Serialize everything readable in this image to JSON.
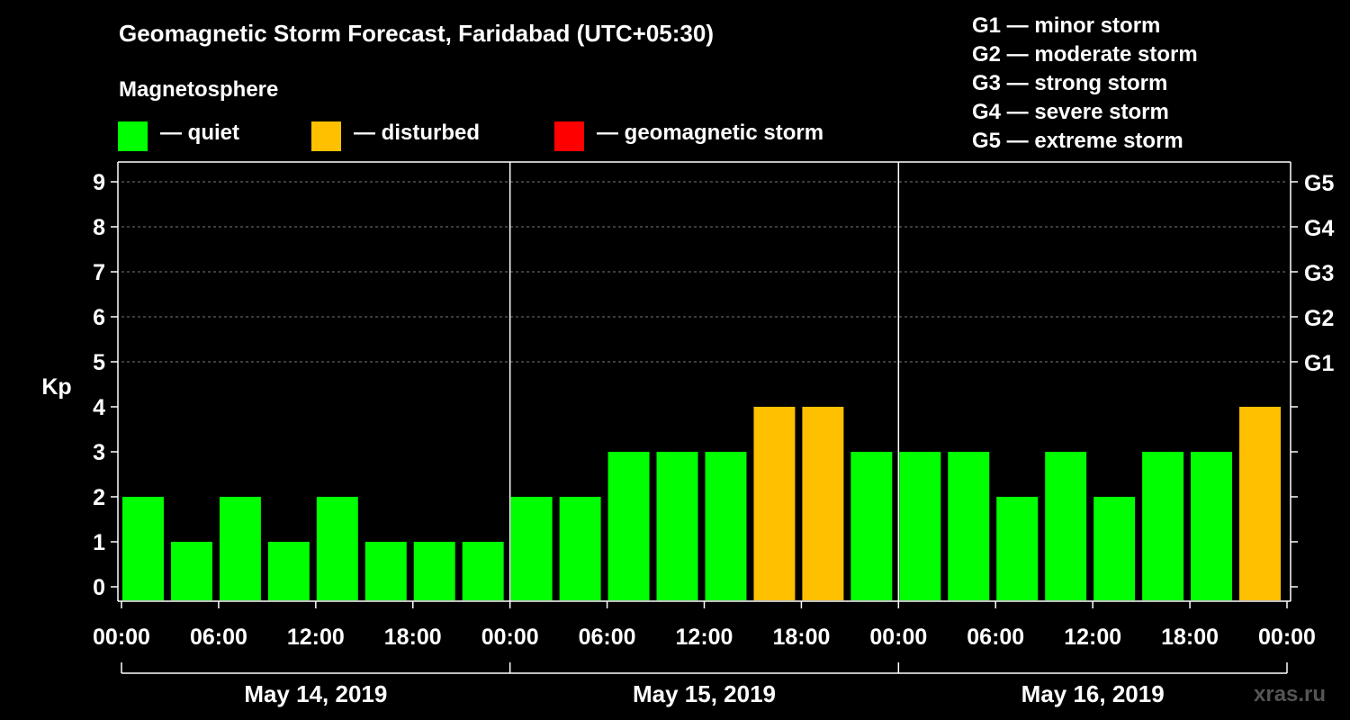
{
  "title": "Geomagnetic Storm Forecast, Faridabad (UTC+05:30)",
  "magnetosphere_label": "Magnetosphere",
  "legend": [
    {
      "label": "— quiet",
      "color": "#00ff00"
    },
    {
      "label": "— disturbed",
      "color": "#ffc000"
    },
    {
      "label": "— geomagnetic storm",
      "color": "#ff0000"
    }
  ],
  "storm_levels": [
    "G1 — minor storm",
    "G2 — moderate storm",
    "G3 — strong storm",
    "G4 — severe storm",
    "G5 — extreme storm"
  ],
  "watermark": "xras.ru",
  "chart_data": {
    "type": "bar",
    "title": "Geomagnetic Storm Forecast, Faridabad (UTC+05:30)",
    "ylabel": "Kp",
    "ylim": [
      0,
      9
    ],
    "yticks": [
      "0",
      "1",
      "2",
      "3",
      "4",
      "5",
      "6",
      "7",
      "8",
      "9"
    ],
    "right_ticks": [
      {
        "kp": 5,
        "label": "G1"
      },
      {
        "kp": 6,
        "label": "G2"
      },
      {
        "kp": 7,
        "label": "G3"
      },
      {
        "kp": 8,
        "label": "G4"
      },
      {
        "kp": 9,
        "label": "G5"
      }
    ],
    "xticks": [
      "00:00",
      "06:00",
      "12:00",
      "18:00",
      "00:00",
      "06:00",
      "12:00",
      "18:00",
      "00:00",
      "06:00",
      "12:00",
      "18:00",
      "00:00"
    ],
    "days": [
      "May 14, 2019",
      "May 15, 2019",
      "May 16, 2019"
    ],
    "interval_hours": 3,
    "start_offset_hours": 0,
    "values": [
      2,
      1,
      2,
      1,
      2,
      1,
      1,
      1,
      2,
      2,
      3,
      3,
      3,
      4,
      4,
      3,
      3,
      3,
      2,
      3,
      2,
      3,
      3,
      4
    ],
    "bar_colors": {
      "quiet": "#00ff00",
      "disturbed": "#ffc000",
      "storm": "#ff0000"
    }
  }
}
